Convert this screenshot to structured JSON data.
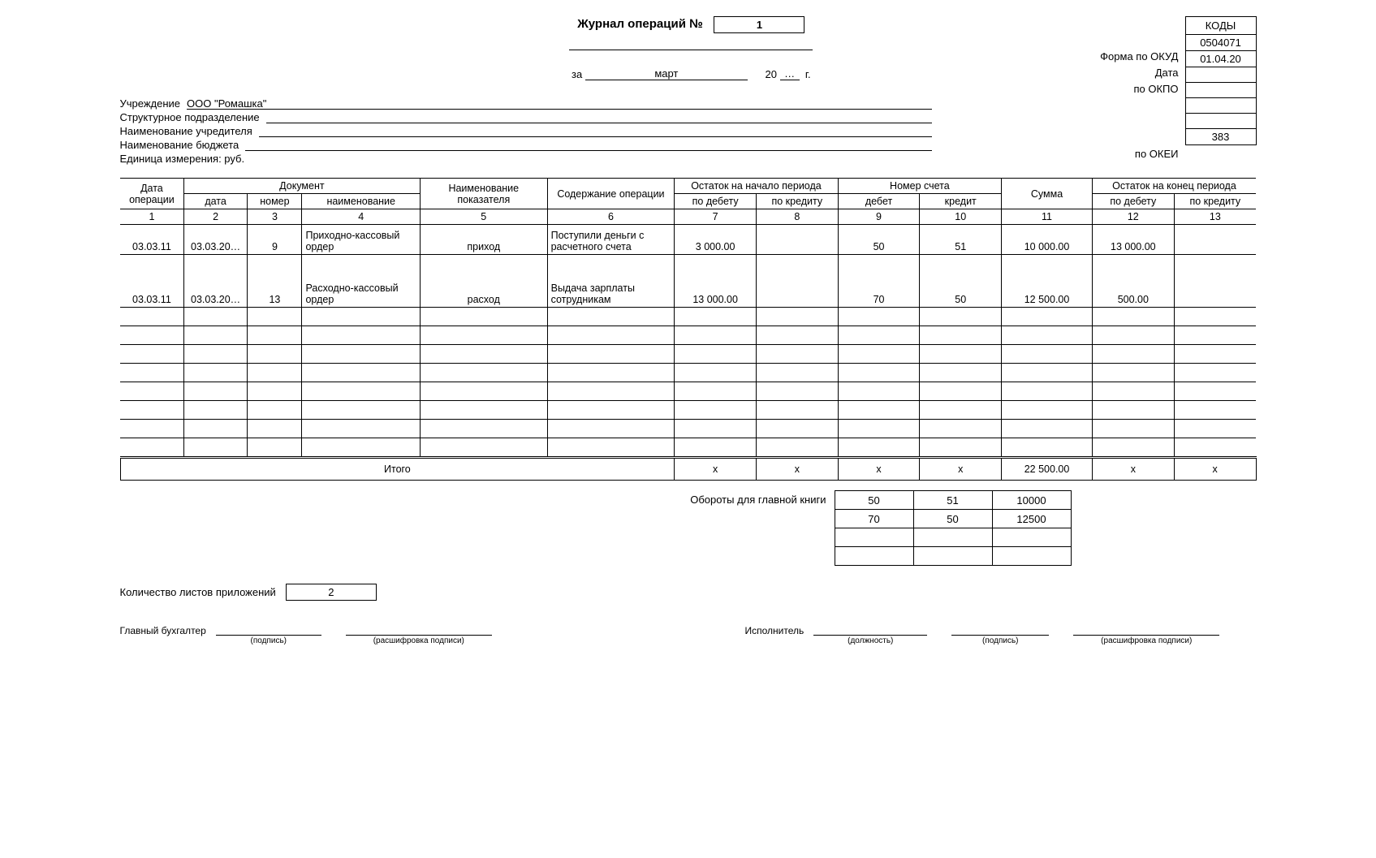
{
  "title": "Журнал операций №",
  "journal_number": "1",
  "period_prefix": "за",
  "period_month": "март",
  "period_year_prefix": "20",
  "period_year_suffix": "г.",
  "period_year_dots": "…",
  "codes_header": "КОДЫ",
  "codes_labels": {
    "form": "Форма по ОКУД",
    "date": "Дата",
    "okpo": "по ОКПО",
    "okei": "по ОКЕИ"
  },
  "codes_values": {
    "form": "0504071",
    "date": "01.04.20",
    "okpo": "",
    "blank1": "",
    "blank2": "",
    "blank3": "",
    "okei": "383"
  },
  "info": {
    "institution_label": "Учреждение",
    "institution_value": "ООО \"Ромашка\"",
    "subdivision_label": "Структурное подразделение",
    "founder_label": "Наименование учредителя",
    "budget_label": "Наименование бюджета",
    "unit_label": "Единица измерения: руб."
  },
  "table": {
    "headers": {
      "op_date": "Дата операции",
      "document": "Документ",
      "doc_date": "дата",
      "doc_num": "номер",
      "doc_name": "наименование",
      "indicator": "Наименование показателя",
      "content": "Содержание операции",
      "start_balance": "Остаток на начало периода",
      "debit": "по дебету",
      "credit": "по кредиту",
      "account": "Номер счета",
      "acc_debit": "дебет",
      "acc_credit": "кредит",
      "sum": "Сумма",
      "end_balance": "Остаток на конец периода"
    },
    "colnums": [
      "1",
      "2",
      "3",
      "4",
      "5",
      "6",
      "7",
      "8",
      "9",
      "10",
      "11",
      "12",
      "13"
    ],
    "rows": [
      {
        "op_date": "03.03.11",
        "doc_date": "03.03.20…",
        "doc_num": "9",
        "doc_name": "Приходно-кассовый ордер",
        "indicator": "приход",
        "content": "Поступили деньги с расчетного счета",
        "sb_debit": "3 000.00",
        "sb_credit": "",
        "acc_debit": "50",
        "acc_credit": "51",
        "sum": "10 000.00",
        "eb_debit": "13 000.00",
        "eb_credit": ""
      },
      {
        "op_date": "03.03.11",
        "doc_date": "03.03.20…",
        "doc_num": "13",
        "doc_name": "Расходно-кассовый ордер",
        "indicator": "расход",
        "content": "Выдача зарплаты сотрудникам",
        "sb_debit": "13 000.00",
        "sb_credit": "",
        "acc_debit": "70",
        "acc_credit": "50",
        "sum": "12 500.00",
        "eb_debit": "500.00",
        "eb_credit": ""
      }
    ],
    "empty_rows": 8,
    "total_label": "Итого",
    "total": {
      "sb_debit": "x",
      "sb_credit": "x",
      "acc_debit": "x",
      "acc_credit": "x",
      "sum": "22 500.00",
      "eb_debit": "x",
      "eb_credit": "x"
    }
  },
  "turnover": {
    "label": "Обороты для главной книги",
    "rows": [
      [
        "50",
        "51",
        "10000"
      ],
      [
        "70",
        "50",
        "12500"
      ],
      [
        "",
        "",
        ""
      ],
      [
        "",
        "",
        ""
      ]
    ]
  },
  "attachment": {
    "label": "Количество листов приложений",
    "value": "2"
  },
  "signatures": {
    "chief_label": "Главный бухгалтер",
    "exec_label": "Исполнитель",
    "captions": {
      "sign": "(подпись)",
      "decode": "(расшифровка подписи)",
      "position": "(должность)"
    }
  }
}
